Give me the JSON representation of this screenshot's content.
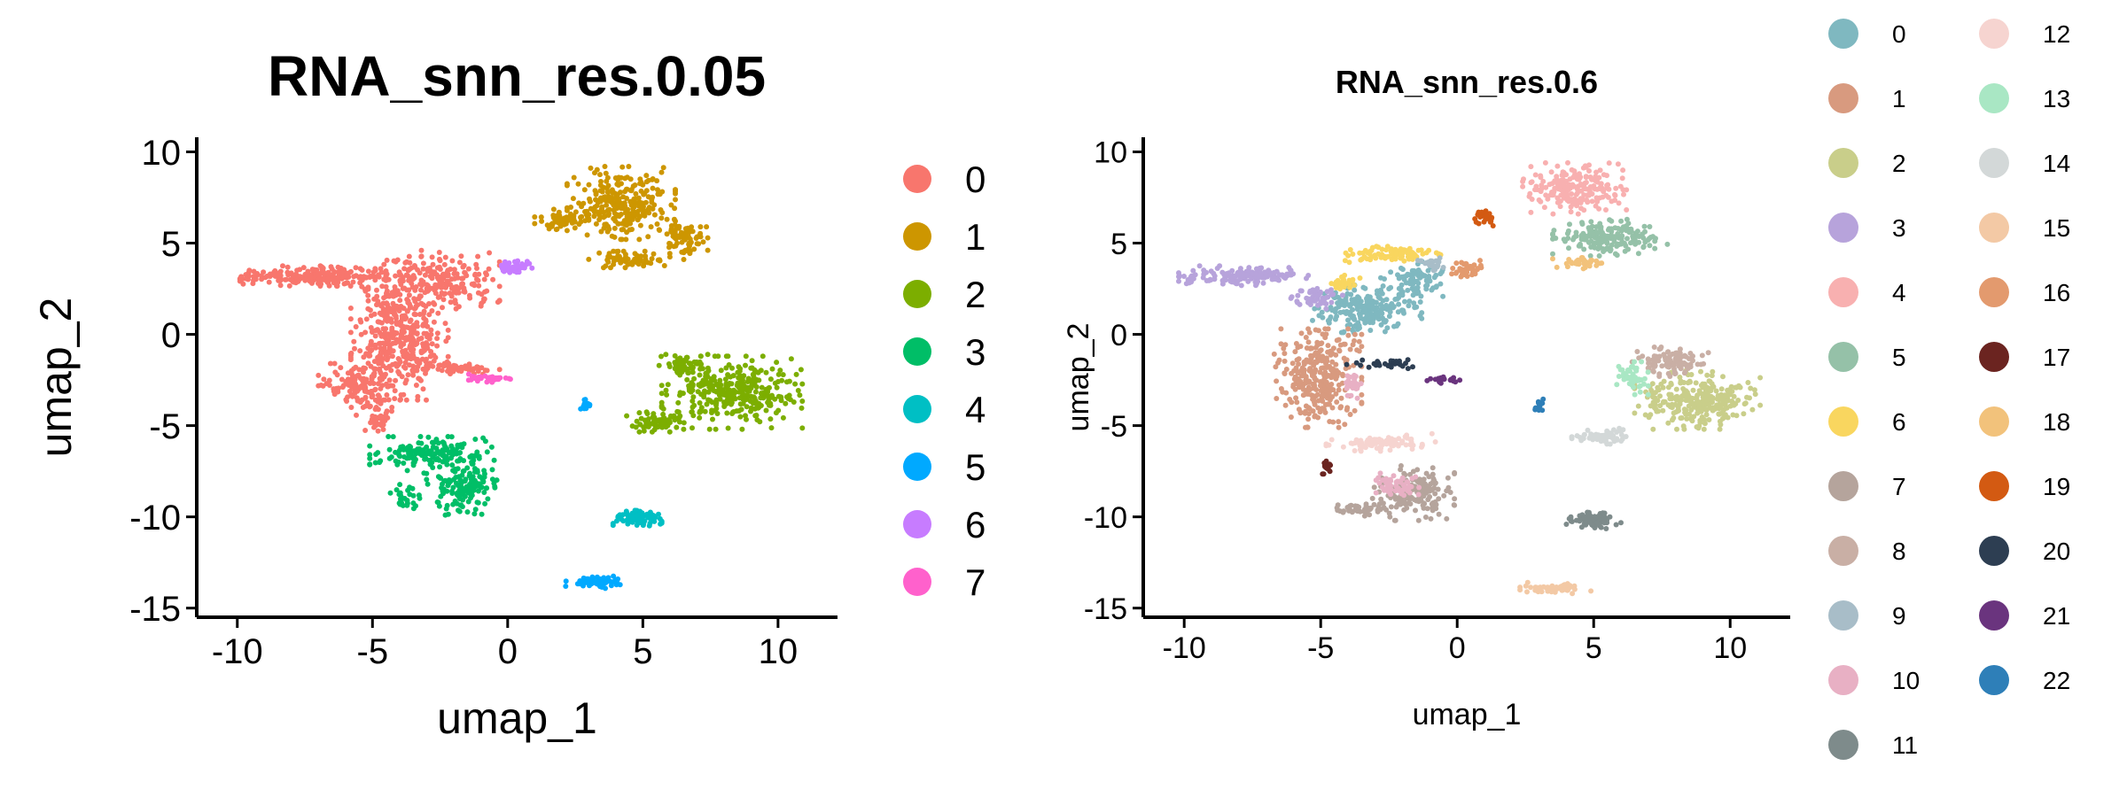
{
  "chart_data": [
    {
      "type": "scatter",
      "title": "RNA_snn_res.0.05",
      "xlabel": "umap_1",
      "ylabel": "umap_2",
      "xlim": [
        -11.5,
        12.2
      ],
      "ylim": [
        -15.5,
        10.8
      ],
      "xticks": [
        -10,
        -5,
        0,
        5,
        10
      ],
      "yticks": [
        10,
        5,
        0,
        -5,
        -10,
        -15
      ],
      "legend_position": "right",
      "grid": false,
      "series": [
        {
          "name": "0",
          "color": "#F8766D",
          "regions": [
            {
              "cx": -4.0,
              "cy": 0.0,
              "rx": 1.8,
              "ry": 3.6,
              "n": 420
            },
            {
              "cx": -7.2,
              "cy": 3.2,
              "rx": 2.7,
              "ry": 0.55,
              "n": 220
            },
            {
              "cx": -2.6,
              "cy": 3.0,
              "rx": 2.3,
              "ry": 1.6,
              "n": 200
            },
            {
              "cx": -5.4,
              "cy": -2.8,
              "rx": 1.6,
              "ry": 1.2,
              "n": 120
            },
            {
              "cx": -1.9,
              "cy": -1.9,
              "rx": 1.6,
              "ry": 0.3,
              "n": 60
            },
            {
              "cx": -4.9,
              "cy": -4.5,
              "rx": 0.7,
              "ry": 0.8,
              "n": 40
            }
          ]
        },
        {
          "name": "1",
          "color": "#CD9600",
          "regions": [
            {
              "cx": 4.2,
              "cy": 7.2,
              "rx": 2.0,
              "ry": 2.0,
              "n": 260
            },
            {
              "cx": 6.5,
              "cy": 5.2,
              "rx": 0.9,
              "ry": 1.1,
              "n": 80
            },
            {
              "cx": 2.0,
              "cy": 6.3,
              "rx": 1.0,
              "ry": 0.55,
              "n": 60
            },
            {
              "cx": 4.4,
              "cy": 4.1,
              "rx": 1.4,
              "ry": 0.45,
              "n": 60
            }
          ]
        },
        {
          "name": "2",
          "color": "#7CAE00",
          "regions": [
            {
              "cx": 8.3,
              "cy": -3.2,
              "rx": 2.6,
              "ry": 2.0,
              "n": 340
            },
            {
              "cx": 5.6,
              "cy": -4.8,
              "rx": 1.2,
              "ry": 0.55,
              "n": 70
            },
            {
              "cx": 6.5,
              "cy": -1.7,
              "rx": 0.9,
              "ry": 0.6,
              "n": 50
            }
          ]
        },
        {
          "name": "3",
          "color": "#00BE67",
          "regions": [
            {
              "cx": -2.8,
              "cy": -6.6,
              "rx": 2.3,
              "ry": 1.0,
              "n": 160
            },
            {
              "cx": -1.7,
              "cy": -8.5,
              "rx": 1.3,
              "ry": 1.4,
              "n": 130
            },
            {
              "cx": -3.8,
              "cy": -8.9,
              "rx": 0.6,
              "ry": 0.9,
              "n": 30
            }
          ]
        },
        {
          "name": "4",
          "color": "#00BFC4",
          "regions": [
            {
              "cx": 4.8,
              "cy": -10.1,
              "rx": 0.9,
              "ry": 0.45,
              "n": 90
            }
          ]
        },
        {
          "name": "5",
          "color": "#00A9FF",
          "regions": [
            {
              "cx": 3.2,
              "cy": -13.6,
              "rx": 1.1,
              "ry": 0.35,
              "n": 60
            },
            {
              "cx": 2.9,
              "cy": -3.9,
              "rx": 0.2,
              "ry": 0.5,
              "n": 15
            }
          ]
        },
        {
          "name": "6",
          "color": "#C77CFF",
          "regions": [
            {
              "cx": 0.2,
              "cy": 3.7,
              "rx": 0.7,
              "ry": 0.45,
              "n": 45
            }
          ]
        },
        {
          "name": "7",
          "color": "#FF61CC",
          "regions": [
            {
              "cx": -0.7,
              "cy": -2.4,
              "rx": 0.8,
              "ry": 0.22,
              "n": 30
            }
          ]
        }
      ]
    },
    {
      "type": "scatter",
      "title": "RNA_snn_res.0.6",
      "xlabel": "umap_1",
      "ylabel": "umap_2",
      "xlim": [
        -11.5,
        12.2
      ],
      "ylim": [
        -15.5,
        10.8
      ],
      "xticks": [
        -10,
        -5,
        0,
        5,
        10
      ],
      "yticks": [
        10,
        5,
        0,
        -5,
        -10,
        -15
      ],
      "legend_position": "right",
      "grid": false,
      "series": [
        {
          "name": "0",
          "color": "#7FB8C0",
          "regions": [
            {
              "cx": -3.3,
              "cy": 1.4,
              "rx": 2.0,
              "ry": 1.3,
              "n": 220
            },
            {
              "cx": -1.6,
              "cy": 3.0,
              "rx": 1.2,
              "ry": 1.0,
              "n": 80
            }
          ]
        },
        {
          "name": "1",
          "color": "#D89A7F",
          "regions": [
            {
              "cx": -5.1,
              "cy": -2.4,
              "rx": 1.6,
              "ry": 2.7,
              "n": 300
            }
          ]
        },
        {
          "name": "2",
          "color": "#C9CE8A",
          "regions": [
            {
              "cx": 8.8,
              "cy": -3.6,
              "rx": 2.3,
              "ry": 1.6,
              "n": 280
            }
          ]
        },
        {
          "name": "3",
          "color": "#B7A3DB",
          "regions": [
            {
              "cx": -7.8,
              "cy": 3.2,
              "rx": 2.4,
              "ry": 0.55,
              "n": 160
            },
            {
              "cx": -5.2,
              "cy": 2.0,
              "rx": 1.0,
              "ry": 0.6,
              "n": 50
            }
          ]
        },
        {
          "name": "4",
          "color": "#F8B0B0",
          "regions": [
            {
              "cx": 4.3,
              "cy": 8.0,
              "rx": 1.9,
              "ry": 1.4,
              "n": 200
            }
          ]
        },
        {
          "name": "5",
          "color": "#95C1A8",
          "regions": [
            {
              "cx": 5.6,
              "cy": 5.3,
              "rx": 2.1,
              "ry": 1.0,
              "n": 180
            }
          ]
        },
        {
          "name": "6",
          "color": "#F9D65F",
          "regions": [
            {
              "cx": -2.2,
              "cy": 4.4,
              "rx": 1.9,
              "ry": 0.45,
              "n": 90
            },
            {
              "cx": -4.2,
              "cy": 2.8,
              "rx": 0.7,
              "ry": 0.45,
              "n": 30
            }
          ]
        },
        {
          "name": "7",
          "color": "#B5A49C",
          "regions": [
            {
              "cx": -1.6,
              "cy": -8.7,
              "rx": 1.5,
              "ry": 1.5,
              "n": 150
            },
            {
              "cx": -3.6,
              "cy": -9.6,
              "rx": 1.0,
              "ry": 0.35,
              "n": 40
            }
          ]
        },
        {
          "name": "8",
          "color": "#C9AFA5",
          "regions": [
            {
              "cx": 7.8,
              "cy": -1.5,
              "rx": 1.4,
              "ry": 0.8,
              "n": 100
            }
          ]
        },
        {
          "name": "9",
          "color": "#A8BDC8",
          "regions": [
            {
              "cx": -0.9,
              "cy": 3.9,
              "rx": 0.6,
              "ry": 0.4,
              "n": 25
            }
          ]
        },
        {
          "name": "10",
          "color": "#E8B0C4",
          "regions": [
            {
              "cx": -2.3,
              "cy": -8.3,
              "rx": 0.9,
              "ry": 0.8,
              "n": 60
            },
            {
              "cx": -3.8,
              "cy": -2.8,
              "rx": 0.3,
              "ry": 0.7,
              "n": 25
            }
          ]
        },
        {
          "name": "11",
          "color": "#7E8B8B",
          "regions": [
            {
              "cx": 5.0,
              "cy": -10.2,
              "rx": 1.0,
              "ry": 0.45,
              "n": 80
            }
          ]
        },
        {
          "name": "12",
          "color": "#F6D4D0",
          "regions": [
            {
              "cx": -2.8,
              "cy": -5.9,
              "rx": 2.0,
              "ry": 0.5,
              "n": 90
            }
          ]
        },
        {
          "name": "13",
          "color": "#A9E7C4",
          "regions": [
            {
              "cx": 6.4,
              "cy": -2.4,
              "rx": 0.6,
              "ry": 0.9,
              "n": 50
            }
          ]
        },
        {
          "name": "14",
          "color": "#D3D8D8",
          "regions": [
            {
              "cx": 5.3,
              "cy": -5.6,
              "rx": 1.1,
              "ry": 0.45,
              "n": 60
            }
          ]
        },
        {
          "name": "15",
          "color": "#F3C9A5",
          "regions": [
            {
              "cx": 3.6,
              "cy": -13.9,
              "rx": 1.3,
              "ry": 0.3,
              "n": 55
            }
          ]
        },
        {
          "name": "16",
          "color": "#E39A6E",
          "regions": [
            {
              "cx": 0.4,
              "cy": 3.6,
              "rx": 0.7,
              "ry": 0.45,
              "n": 40
            }
          ]
        },
        {
          "name": "17",
          "color": "#6B2420",
          "regions": [
            {
              "cx": -4.8,
              "cy": -7.3,
              "rx": 0.3,
              "ry": 0.35,
              "n": 15
            }
          ]
        },
        {
          "name": "18",
          "color": "#F2C27B",
          "regions": [
            {
              "cx": 4.5,
              "cy": 3.9,
              "rx": 1.0,
              "ry": 0.3,
              "n": 35
            }
          ]
        },
        {
          "name": "19",
          "color": "#D35A12",
          "regions": [
            {
              "cx": 1.0,
              "cy": 6.4,
              "rx": 0.4,
              "ry": 0.45,
              "n": 30
            }
          ]
        },
        {
          "name": "20",
          "color": "#2D3E52",
          "regions": [
            {
              "cx": -2.7,
              "cy": -1.6,
              "rx": 1.4,
              "ry": 0.3,
              "n": 30
            }
          ]
        },
        {
          "name": "21",
          "color": "#6A347E",
          "regions": [
            {
              "cx": -0.5,
              "cy": -2.5,
              "rx": 0.6,
              "ry": 0.18,
              "n": 20
            }
          ]
        },
        {
          "name": "22",
          "color": "#2E7FB8",
          "regions": [
            {
              "cx": 3.0,
              "cy": -3.9,
              "rx": 0.2,
              "ry": 0.5,
              "n": 15
            }
          ]
        }
      ]
    }
  ]
}
